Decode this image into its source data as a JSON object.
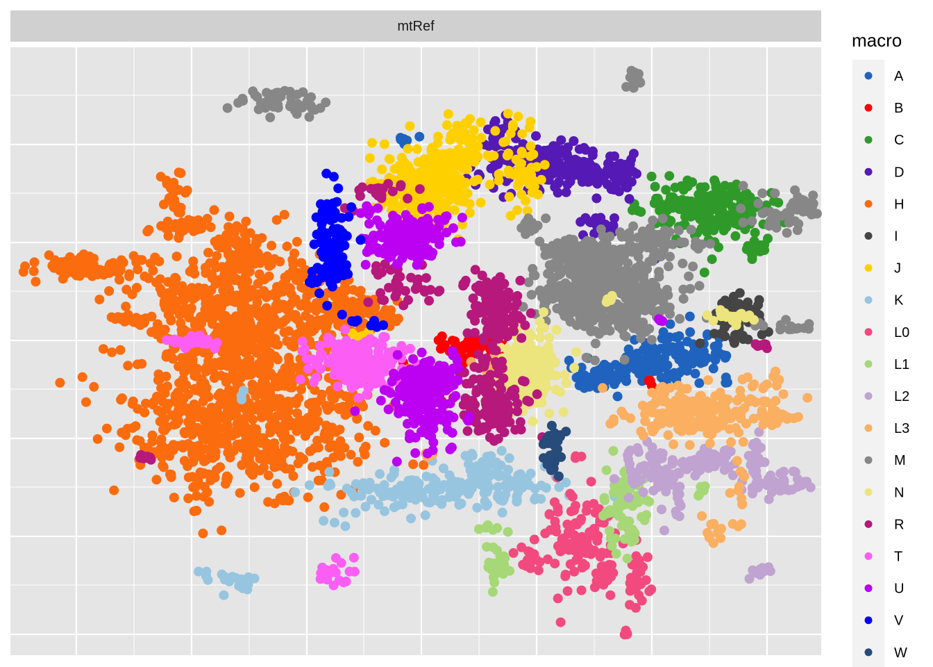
{
  "chart_data": {
    "type": "scatter",
    "facet": "mtRef",
    "title": "",
    "xlabel": "",
    "ylabel": "",
    "xlim": [
      0,
      100
    ],
    "ylim": [
      0,
      100
    ],
    "grid": true,
    "legend_position": "right",
    "legend_title": "macro",
    "background": "#e5e5e5",
    "strip_background": "#d0d0d0",
    "series": [
      {
        "name": "A",
        "color": "#1f63be",
        "clusters": [
          [
            48.5,
            85,
            0.5,
            0.5,
            10
          ],
          [
            72,
            45.5,
            1.5,
            1.0,
            70
          ],
          [
            77.5,
            47.5,
            2.0,
            1.5,
            60
          ],
          [
            83,
            49.5,
            3.0,
            2.0,
            100
          ]
        ]
      },
      {
        "name": "B",
        "color": "#ff0000",
        "clusters": [
          [
            57,
            50.5,
            2.0,
            1.0,
            60
          ],
          [
            53,
            42,
            0.3,
            0.3,
            3
          ],
          [
            79,
            44.5,
            0.3,
            0.3,
            3
          ]
        ]
      },
      {
        "name": "C",
        "color": "#2f9a29",
        "clusters": [
          [
            86.5,
            73,
            4.0,
            2.5,
            220
          ],
          [
            92,
            67,
            0.8,
            1.0,
            15
          ]
        ]
      },
      {
        "name": "D",
        "color": "#5519b5",
        "clusters": [
          [
            66,
            80.5,
            4.0,
            2.0,
            200
          ],
          [
            74,
            79,
            1.5,
            1.5,
            50
          ],
          [
            60,
            86,
            0.6,
            1.5,
            20
          ],
          [
            73,
            70,
            1.2,
            1.2,
            25
          ],
          [
            72,
            64,
            1.0,
            1.0,
            20
          ],
          [
            80,
            66,
            0.4,
            0.4,
            5
          ]
        ]
      },
      {
        "name": "H",
        "color": "#fb6c0f",
        "clusters": [
          [
            29,
            56.5,
            6.0,
            5.5,
            500
          ],
          [
            30,
            39.5,
            7.5,
            6.5,
            650
          ],
          [
            28,
            65.5,
            1.8,
            2.0,
            70
          ],
          [
            9,
            64,
            4.0,
            1.0,
            70
          ],
          [
            21,
            70.5,
            1.5,
            0.8,
            30
          ],
          [
            20,
            76,
            0.8,
            2.0,
            25
          ],
          [
            20,
            58.5,
            1.0,
            1.5,
            25
          ],
          [
            42,
            56,
            2.5,
            1.5,
            120
          ],
          [
            15,
            55,
            1.5,
            0.5,
            20
          ],
          [
            13,
            62,
            2.0,
            2.5,
            10
          ],
          [
            23,
            33,
            2.0,
            6.0,
            40
          ],
          [
            39,
            62.5,
            1.0,
            1.5,
            15
          ]
        ]
      },
      {
        "name": "I",
        "color": "#454545",
        "clusters": [
          [
            89.5,
            55,
            1.5,
            2.0,
            60
          ]
        ]
      },
      {
        "name": "J",
        "color": "#ffd000",
        "clusters": [
          [
            51,
            77,
            3.0,
            3.5,
            220
          ],
          [
            56,
            83,
            1.5,
            2.5,
            50
          ],
          [
            63,
            79.5,
            1.5,
            4.0,
            60
          ],
          [
            43,
            52.5,
            0.5,
            0.5,
            6
          ]
        ]
      },
      {
        "name": "K",
        "color": "#97c5df",
        "clusters": [
          [
            54,
            27.5,
            6.0,
            1.5,
            170
          ],
          [
            59,
            31,
            1.5,
            2.0,
            30
          ],
          [
            44,
            24,
            2.0,
            1.0,
            8
          ],
          [
            28,
            12.5,
            2.0,
            0.8,
            20
          ],
          [
            28,
            43,
            0.5,
            0.5,
            3
          ],
          [
            40,
            21,
            0.8,
            0.8,
            3
          ]
        ]
      },
      {
        "name": "L0",
        "color": "#f24a7e",
        "clusters": [
          [
            70,
            19.5,
            2.5,
            4.0,
            110
          ],
          [
            64,
            16,
            1.2,
            1.2,
            15
          ],
          [
            77.5,
            12.5,
            0.8,
            2.5,
            30
          ],
          [
            73,
            13,
            0.6,
            1.0,
            10
          ],
          [
            70,
            33,
            0.4,
            0.4,
            3
          ],
          [
            76,
            3.5,
            0.3,
            0.3,
            4
          ]
        ]
      },
      {
        "name": "L1",
        "color": "#a6d877",
        "clusters": [
          [
            76,
            24,
            1.5,
            4.0,
            70
          ],
          [
            60,
            15,
            1.0,
            2.0,
            25
          ],
          [
            59.5,
            20.5,
            0.8,
            0.5,
            6
          ],
          [
            85,
            27,
            0.5,
            0.5,
            5
          ]
        ]
      },
      {
        "name": "L2",
        "color": "#c0a3d0",
        "clusters": [
          [
            79,
            30.5,
            2.0,
            2.0,
            70
          ],
          [
            86,
            32,
            1.5,
            1.0,
            40
          ],
          [
            94.5,
            28,
            2.0,
            1.0,
            40
          ],
          [
            92,
            32.5,
            0.5,
            2.0,
            20
          ],
          [
            92,
            14,
            0.8,
            0.8,
            10
          ],
          [
            82,
            26,
            0.8,
            3.0,
            15
          ]
        ]
      },
      {
        "name": "L3",
        "color": "#fbaf61",
        "clusters": [
          [
            85,
            40,
            4.5,
            2.0,
            200
          ],
          [
            95,
            39,
            1.2,
            0.5,
            25
          ],
          [
            60,
            47,
            1.0,
            1.0,
            30
          ],
          [
            93,
            45,
            2.0,
            1.0,
            12
          ],
          [
            87,
            20,
            1.0,
            1.5,
            10
          ],
          [
            90,
            26,
            0.5,
            2.5,
            12
          ],
          [
            51.5,
            32,
            0.6,
            0.6,
            4
          ]
        ]
      },
      {
        "name": "M",
        "color": "#878787",
        "clusters": [
          [
            73.5,
            59.5,
            4.0,
            3.5,
            450
          ],
          [
            71,
            66,
            2.5,
            1.5,
            80
          ],
          [
            79,
            68,
            2.0,
            1.5,
            50
          ],
          [
            33,
            91,
            2.5,
            1.0,
            50
          ],
          [
            97,
            73,
            3.5,
            1.5,
            60
          ],
          [
            77,
            95,
            0.5,
            1.0,
            15
          ],
          [
            96,
            54,
            1.5,
            0.5,
            15
          ],
          [
            109,
            68,
            0.5,
            1.0,
            20
          ],
          [
            64,
            70.5,
            1.0,
            0.8,
            15
          ],
          [
            67.5,
            66.5,
            1.0,
            0.5,
            10
          ],
          [
            85,
            67,
            0.5,
            0.5,
            6
          ]
        ]
      },
      {
        "name": "N",
        "color": "#ece47c",
        "clusters": [
          [
            64,
            47.5,
            2.0,
            4.0,
            160
          ],
          [
            89,
            55.5,
            1.5,
            0.8,
            20
          ],
          [
            108.5,
            41,
            0.8,
            0.6,
            10
          ],
          [
            73.5,
            58.5,
            0.5,
            0.5,
            4
          ]
        ]
      },
      {
        "name": "R",
        "color": "#b6187b",
        "clusters": [
          [
            60,
            56,
            1.5,
            3.0,
            120
          ],
          [
            59.5,
            41.5,
            2.0,
            3.0,
            120
          ],
          [
            48,
            61,
            2.0,
            1.5,
            40
          ],
          [
            45,
            76,
            1.8,
            0.8,
            20
          ],
          [
            42,
            73,
            0.4,
            0.4,
            3
          ],
          [
            93,
            51,
            0.5,
            0.4,
            6
          ],
          [
            17,
            32.5,
            0.8,
            0.4,
            8
          ],
          [
            56,
            61,
            0.4,
            0.4,
            4
          ]
        ]
      },
      {
        "name": "T",
        "color": "#fc5ef5",
        "clusters": [
          [
            43,
            48,
            3.0,
            2.0,
            180
          ],
          [
            22.5,
            51.5,
            2.0,
            0.5,
            30
          ],
          [
            40,
            13.5,
            1.0,
            1.5,
            20
          ]
        ]
      },
      {
        "name": "U",
        "color": "#bc00f2",
        "clusters": [
          [
            49,
            69,
            2.5,
            2.0,
            200
          ],
          [
            51,
            41.5,
            2.0,
            3.5,
            130
          ],
          [
            51.5,
            46,
            2.0,
            1.5,
            70
          ],
          [
            80,
            54.5,
            0.4,
            0.4,
            3
          ]
        ]
      },
      {
        "name": "V",
        "color": "#0000ff",
        "clusters": [
          [
            39.5,
            68,
            1.2,
            5.0,
            80
          ],
          [
            40,
            63,
            1.5,
            1.5,
            30
          ],
          [
            45,
            54.5,
            2.0,
            0.5,
            8
          ]
        ]
      },
      {
        "name": "W",
        "color": "#274b7a",
        "clusters": [
          [
            67,
            33.5,
            0.6,
            2.0,
            30
          ]
        ]
      }
    ]
  }
}
